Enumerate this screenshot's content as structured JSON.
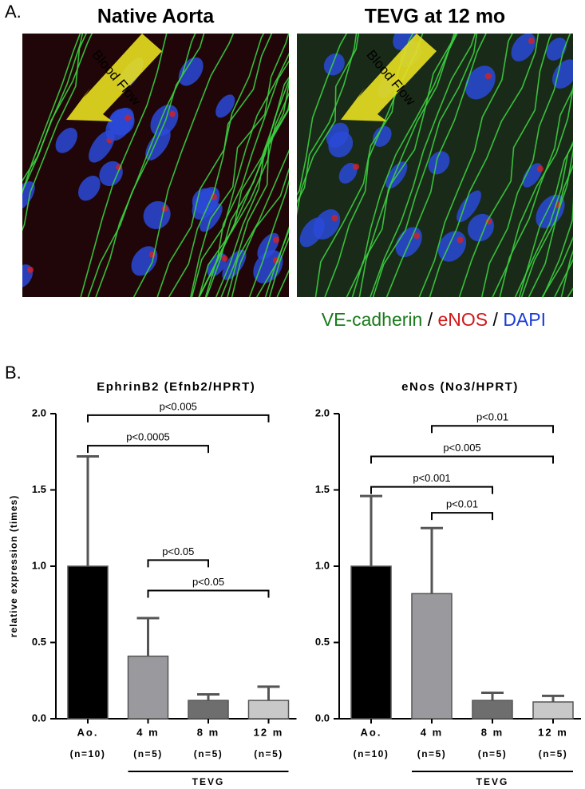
{
  "panel_a": {
    "label": "A.",
    "images": [
      {
        "title": "Native Aorta",
        "arrow": "Blood Flow"
      },
      {
        "title": "TEVG at 12 mo",
        "arrow": "Blood Flow"
      }
    ],
    "legend": [
      {
        "text": "VE-cadherin",
        "color": "#1a7a1a"
      },
      {
        "text": " / ",
        "color": "#000000"
      },
      {
        "text": "eNOS",
        "color": "#d01818"
      },
      {
        "text": " / ",
        "color": "#000000"
      },
      {
        "text": "DAPI",
        "color": "#1a3ad8"
      }
    ]
  },
  "panel_b": {
    "label": "B."
  },
  "chart_data": [
    {
      "type": "bar",
      "title": "EphrinB2 (Efnb2/HPRT)",
      "y_label": "relative expression (times)",
      "categories": [
        "Ao.",
        "4 m",
        "8 m",
        "12 m"
      ],
      "n_labels": [
        "(n=10)",
        "(n=5)",
        "(n=5)",
        "(n=5)"
      ],
      "values": [
        1.0,
        0.41,
        0.12,
        0.12
      ],
      "errors": [
        0.72,
        0.25,
        0.04,
        0.09
      ],
      "colors": [
        "#000000",
        "#9a9a9e",
        "#6e6e6e",
        "#c8c8c8"
      ],
      "ylim": [
        0,
        2
      ],
      "yticks": [
        {
          "value": 0,
          "label": "0.0"
        },
        {
          "value": 0.5,
          "label": "0.5"
        },
        {
          "value": 1,
          "label": "1.0"
        },
        {
          "value": 1.5,
          "label": "1.5"
        },
        {
          "value": 2,
          "label": "2.0"
        }
      ],
      "brackets": [
        {
          "from": 0,
          "to": 3,
          "y": 1.99,
          "label": "p<0.005"
        },
        {
          "from": 0,
          "to": 2,
          "y": 1.79,
          "label": "p<0.0005"
        },
        {
          "from": 1,
          "to": 2,
          "y": 1.04,
          "label": "p<0.05"
        },
        {
          "from": 1,
          "to": 3,
          "y": 0.84,
          "label": "p<0.05"
        }
      ],
      "group": {
        "label": "TEVG",
        "from": 1,
        "to": 3
      }
    },
    {
      "type": "bar",
      "title": "eNos (No3/HPRT)",
      "categories": [
        "Ao.",
        "4 m",
        "8 m",
        "12 m"
      ],
      "n_labels": [
        "(n=10)",
        "(n=5)",
        "(n=5)",
        "(n=5)"
      ],
      "values": [
        1.0,
        0.82,
        0.12,
        0.11
      ],
      "errors": [
        0.46,
        0.43,
        0.05,
        0.04
      ],
      "colors": [
        "#000000",
        "#9a9a9e",
        "#6e6e6e",
        "#c8c8c8"
      ],
      "ylim": [
        0,
        2
      ],
      "yticks": [
        {
          "value": 0,
          "label": "0.0"
        },
        {
          "value": 0.5,
          "label": "0.5"
        },
        {
          "value": 1,
          "label": "1.0"
        },
        {
          "value": 1.5,
          "label": "1.5"
        },
        {
          "value": 2,
          "label": "2.0"
        }
      ],
      "brackets": [
        {
          "from": 1,
          "to": 3,
          "y": 1.92,
          "label": "p<0.01"
        },
        {
          "from": 0,
          "to": 3,
          "y": 1.72,
          "label": "p<0.005"
        },
        {
          "from": 0,
          "to": 2,
          "y": 1.52,
          "label": "p<0.001"
        },
        {
          "from": 1,
          "to": 2,
          "y": 1.35,
          "label": "p<0.01"
        }
      ],
      "group": {
        "label": "TEVG",
        "from": 1,
        "to": 3
      }
    }
  ]
}
